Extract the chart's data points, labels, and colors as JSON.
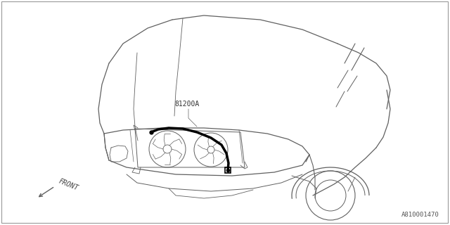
{
  "bg_color": "#ffffff",
  "line_color": "#606060",
  "harness_color": "#000000",
  "label_81200A": "81200A",
  "label_front": "FRONT",
  "label_diagram": "A810001470",
  "label_fontsize": 7,
  "diagram_fontsize": 6.5,
  "fig_width": 6.4,
  "fig_height": 3.2,
  "dpi": 100,
  "border_color": "#999999"
}
